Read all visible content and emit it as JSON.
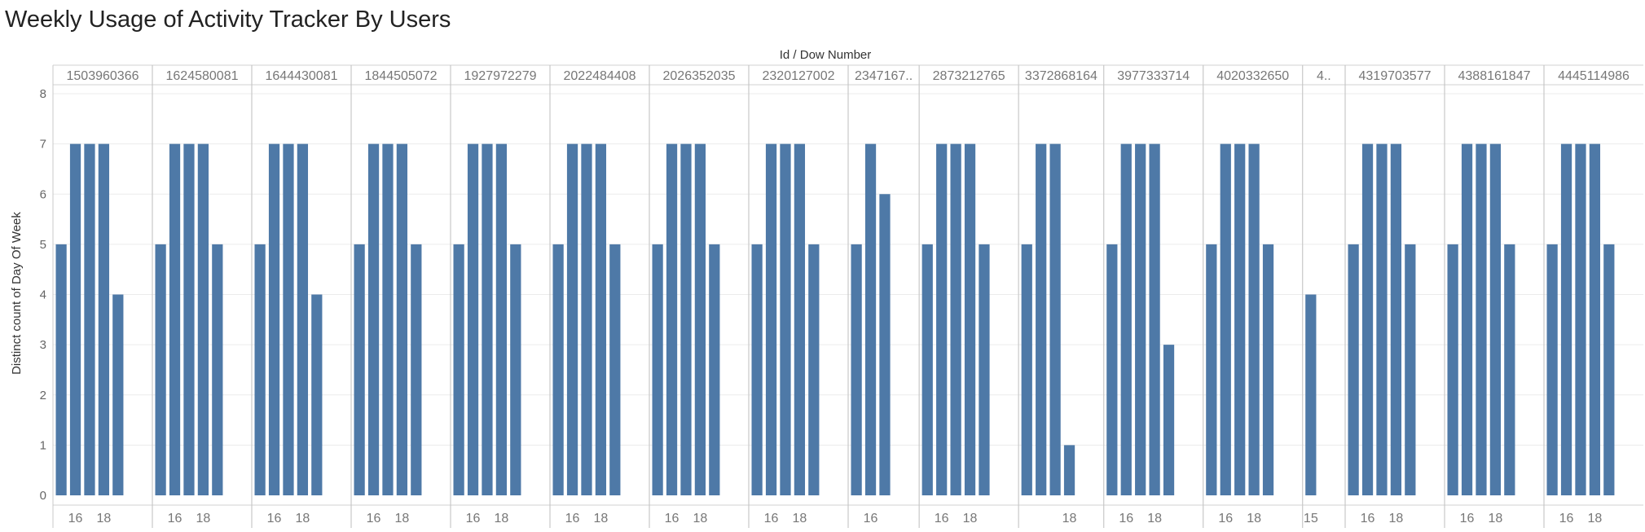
{
  "chart_data": {
    "type": "bar",
    "title": "Weekly Usage of Activity Tracker By Users",
    "column_header": "Id  /  Dow Number",
    "ylabel": "Distinct count of Day Of Week",
    "ylim": [
      0,
      8
    ],
    "yticks": [
      0,
      1,
      2,
      3,
      4,
      5,
      6,
      7,
      8
    ],
    "grid": true,
    "bar_color": "#4e79a7",
    "panels": [
      {
        "id": "1503960366",
        "x": [
          15,
          16,
          17,
          18,
          19
        ],
        "values": [
          5,
          7,
          7,
          7,
          4
        ],
        "tick_labels": [
          "16",
          "18"
        ]
      },
      {
        "id": "1624580081",
        "x": [
          15,
          16,
          17,
          18,
          19
        ],
        "values": [
          5,
          7,
          7,
          7,
          5
        ],
        "tick_labels": [
          "16",
          "18"
        ]
      },
      {
        "id": "1644430081",
        "x": [
          15,
          16,
          17,
          18,
          19
        ],
        "values": [
          5,
          7,
          7,
          7,
          4
        ],
        "tick_labels": [
          "16",
          "18"
        ]
      },
      {
        "id": "1844505072",
        "x": [
          15,
          16,
          17,
          18,
          19
        ],
        "values": [
          5,
          7,
          7,
          7,
          5
        ],
        "tick_labels": [
          "16",
          "18"
        ]
      },
      {
        "id": "1927972279",
        "x": [
          15,
          16,
          17,
          18,
          19
        ],
        "values": [
          5,
          7,
          7,
          7,
          5
        ],
        "tick_labels": [
          "16",
          "18"
        ]
      },
      {
        "id": "2022484408",
        "x": [
          15,
          16,
          17,
          18,
          19
        ],
        "values": [
          5,
          7,
          7,
          7,
          5
        ],
        "tick_labels": [
          "16",
          "18"
        ]
      },
      {
        "id": "2026352035",
        "x": [
          15,
          16,
          17,
          18,
          19
        ],
        "values": [
          5,
          7,
          7,
          7,
          5
        ],
        "tick_labels": [
          "16",
          "18"
        ]
      },
      {
        "id": "2320127002",
        "x": [
          15,
          16,
          17,
          18,
          19
        ],
        "values": [
          5,
          7,
          7,
          7,
          5
        ],
        "tick_labels": [
          "16",
          "18"
        ]
      },
      {
        "id": "2347167..",
        "x": [
          15,
          16,
          17
        ],
        "values": [
          5,
          7,
          6
        ],
        "tick_labels": [
          "16"
        ]
      },
      {
        "id": "2873212765",
        "x": [
          15,
          16,
          17,
          18,
          19
        ],
        "values": [
          5,
          7,
          7,
          7,
          5
        ],
        "tick_labels": [
          "16",
          "18"
        ]
      },
      {
        "id": "3372868164",
        "x": [
          15,
          16,
          17,
          18
        ],
        "values": [
          5,
          7,
          7,
          1
        ],
        "tick_labels": [
          "18"
        ]
      },
      {
        "id": "3977333714",
        "x": [
          15,
          16,
          17,
          18,
          19
        ],
        "values": [
          5,
          7,
          7,
          7,
          3
        ],
        "tick_labels": [
          "16",
          "18"
        ]
      },
      {
        "id": "4020332650",
        "x": [
          15,
          16,
          17,
          18,
          19
        ],
        "values": [
          5,
          7,
          7,
          7,
          5
        ],
        "tick_labels": [
          "16",
          "18"
        ]
      },
      {
        "id": "4..",
        "x": [
          15
        ],
        "values": [
          4
        ],
        "tick_labels": [
          "15"
        ]
      },
      {
        "id": "4319703577",
        "x": [
          15,
          16,
          17,
          18,
          19
        ],
        "values": [
          5,
          7,
          7,
          7,
          5
        ],
        "tick_labels": [
          "16",
          "18"
        ]
      },
      {
        "id": "4388161847",
        "x": [
          15,
          16,
          17,
          18,
          19
        ],
        "values": [
          5,
          7,
          7,
          7,
          5
        ],
        "tick_labels": [
          "16",
          "18"
        ]
      },
      {
        "id": "4445114986",
        "x": [
          15,
          16,
          17,
          18,
          19
        ],
        "values": [
          5,
          7,
          7,
          7,
          5
        ],
        "tick_labels": [
          "16",
          "18"
        ]
      }
    ]
  }
}
